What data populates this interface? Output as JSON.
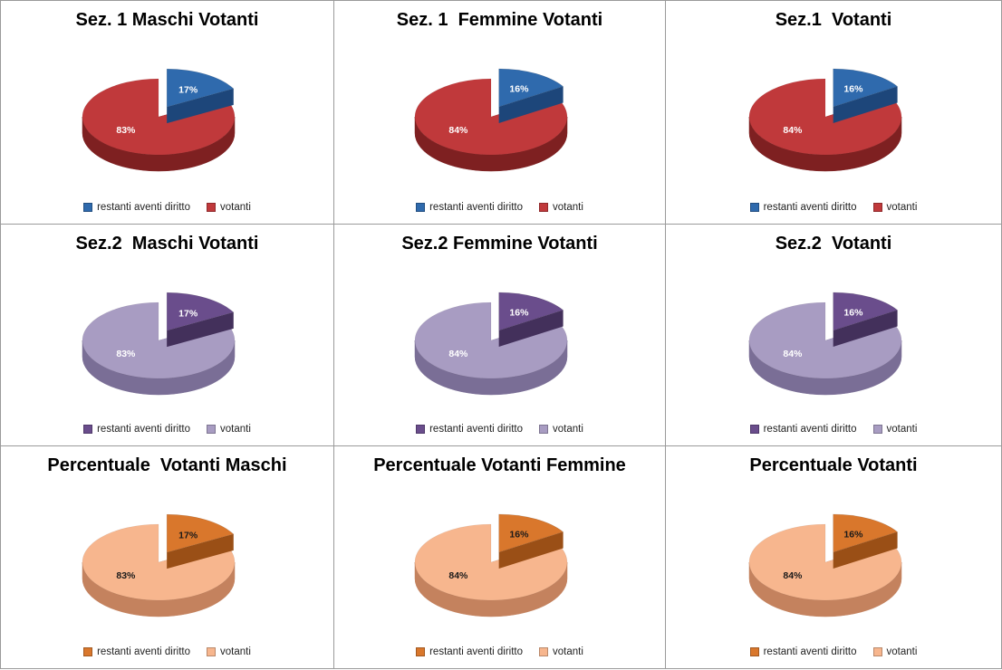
{
  "chart_data": [
    {
      "type": "pie",
      "title": "Sez. 1 Maschi Votanti",
      "labels": [
        "restanti aventi diritto",
        "votanti"
      ],
      "values": [
        17,
        83
      ],
      "value_labels": [
        "17%",
        "83%"
      ],
      "colors": [
        "#2f6aad",
        "#c0393b"
      ],
      "dark_colors": [
        "#1d467a",
        "#7e2021"
      ],
      "label_colors": [
        "#ffffff",
        "#ffffff"
      ],
      "legend": "bottom"
    },
    {
      "type": "pie",
      "title": "Sez. 1  Femmine Votanti",
      "labels": [
        "restanti aventi diritto",
        "votanti"
      ],
      "values": [
        16,
        84
      ],
      "value_labels": [
        "16%",
        "84%"
      ],
      "colors": [
        "#2f6aad",
        "#c0393b"
      ],
      "dark_colors": [
        "#1d467a",
        "#7e2021"
      ],
      "label_colors": [
        "#ffffff",
        "#ffffff"
      ],
      "legend": "bottom"
    },
    {
      "type": "pie",
      "title": "Sez.1  Votanti",
      "labels": [
        "restanti aventi diritto",
        "votanti"
      ],
      "values": [
        16,
        84
      ],
      "value_labels": [
        "16%",
        "84%"
      ],
      "colors": [
        "#2f6aad",
        "#c0393b"
      ],
      "dark_colors": [
        "#1d467a",
        "#7e2021"
      ],
      "label_colors": [
        "#ffffff",
        "#ffffff"
      ],
      "legend": "bottom"
    },
    {
      "type": "pie",
      "title": "Sez.2  Maschi Votanti",
      "labels": [
        "restanti aventi diritto",
        "votanti"
      ],
      "values": [
        17,
        83
      ],
      "value_labels": [
        "17%",
        "83%"
      ],
      "colors": [
        "#6a4d8c",
        "#a89cc2"
      ],
      "dark_colors": [
        "#43305b",
        "#7a6e96"
      ],
      "label_colors": [
        "#ffffff",
        "#ffffff"
      ],
      "legend": "bottom"
    },
    {
      "type": "pie",
      "title": "Sez.2 Femmine Votanti",
      "labels": [
        "restanti aventi diritto",
        "votanti"
      ],
      "values": [
        16,
        84
      ],
      "value_labels": [
        "16%",
        "84%"
      ],
      "colors": [
        "#6a4d8c",
        "#a89cc2"
      ],
      "dark_colors": [
        "#43305b",
        "#7a6e96"
      ],
      "label_colors": [
        "#ffffff",
        "#ffffff"
      ],
      "legend": "bottom"
    },
    {
      "type": "pie",
      "title": "Sez.2  Votanti",
      "labels": [
        "restanti aventi diritto",
        "votanti"
      ],
      "values": [
        16,
        84
      ],
      "value_labels": [
        "16%",
        "84%"
      ],
      "colors": [
        "#6a4d8c",
        "#a89cc2"
      ],
      "dark_colors": [
        "#43305b",
        "#7a6e96"
      ],
      "label_colors": [
        "#ffffff",
        "#ffffff"
      ],
      "legend": "bottom"
    },
    {
      "type": "pie",
      "title": "Percentuale  Votanti Maschi",
      "labels": [
        "restanti aventi diritto",
        "votanti"
      ],
      "values": [
        17,
        83
      ],
      "value_labels": [
        "17%",
        "83%"
      ],
      "colors": [
        "#d9772c",
        "#f7b68e"
      ],
      "dark_colors": [
        "#9a4f16",
        "#c4825e"
      ],
      "label_colors": [
        "#1a1a1a",
        "#1a1a1a"
      ],
      "legend": "bottom"
    },
    {
      "type": "pie",
      "title": "Percentuale Votanti Femmine",
      "labels": [
        "restanti aventi diritto",
        "votanti"
      ],
      "values": [
        16,
        84
      ],
      "value_labels": [
        "16%",
        "84%"
      ],
      "colors": [
        "#d9772c",
        "#f7b68e"
      ],
      "dark_colors": [
        "#9a4f16",
        "#c4825e"
      ],
      "label_colors": [
        "#1a1a1a",
        "#1a1a1a"
      ],
      "legend": "bottom"
    },
    {
      "type": "pie",
      "title": "Percentuale Votanti",
      "labels": [
        "restanti aventi diritto",
        "votanti"
      ],
      "values": [
        16,
        84
      ],
      "value_labels": [
        "16%",
        "84%"
      ],
      "colors": [
        "#d9772c",
        "#f7b68e"
      ],
      "dark_colors": [
        "#9a4f16",
        "#c4825e"
      ],
      "label_colors": [
        "#1a1a1a",
        "#1a1a1a"
      ],
      "legend": "bottom"
    }
  ]
}
